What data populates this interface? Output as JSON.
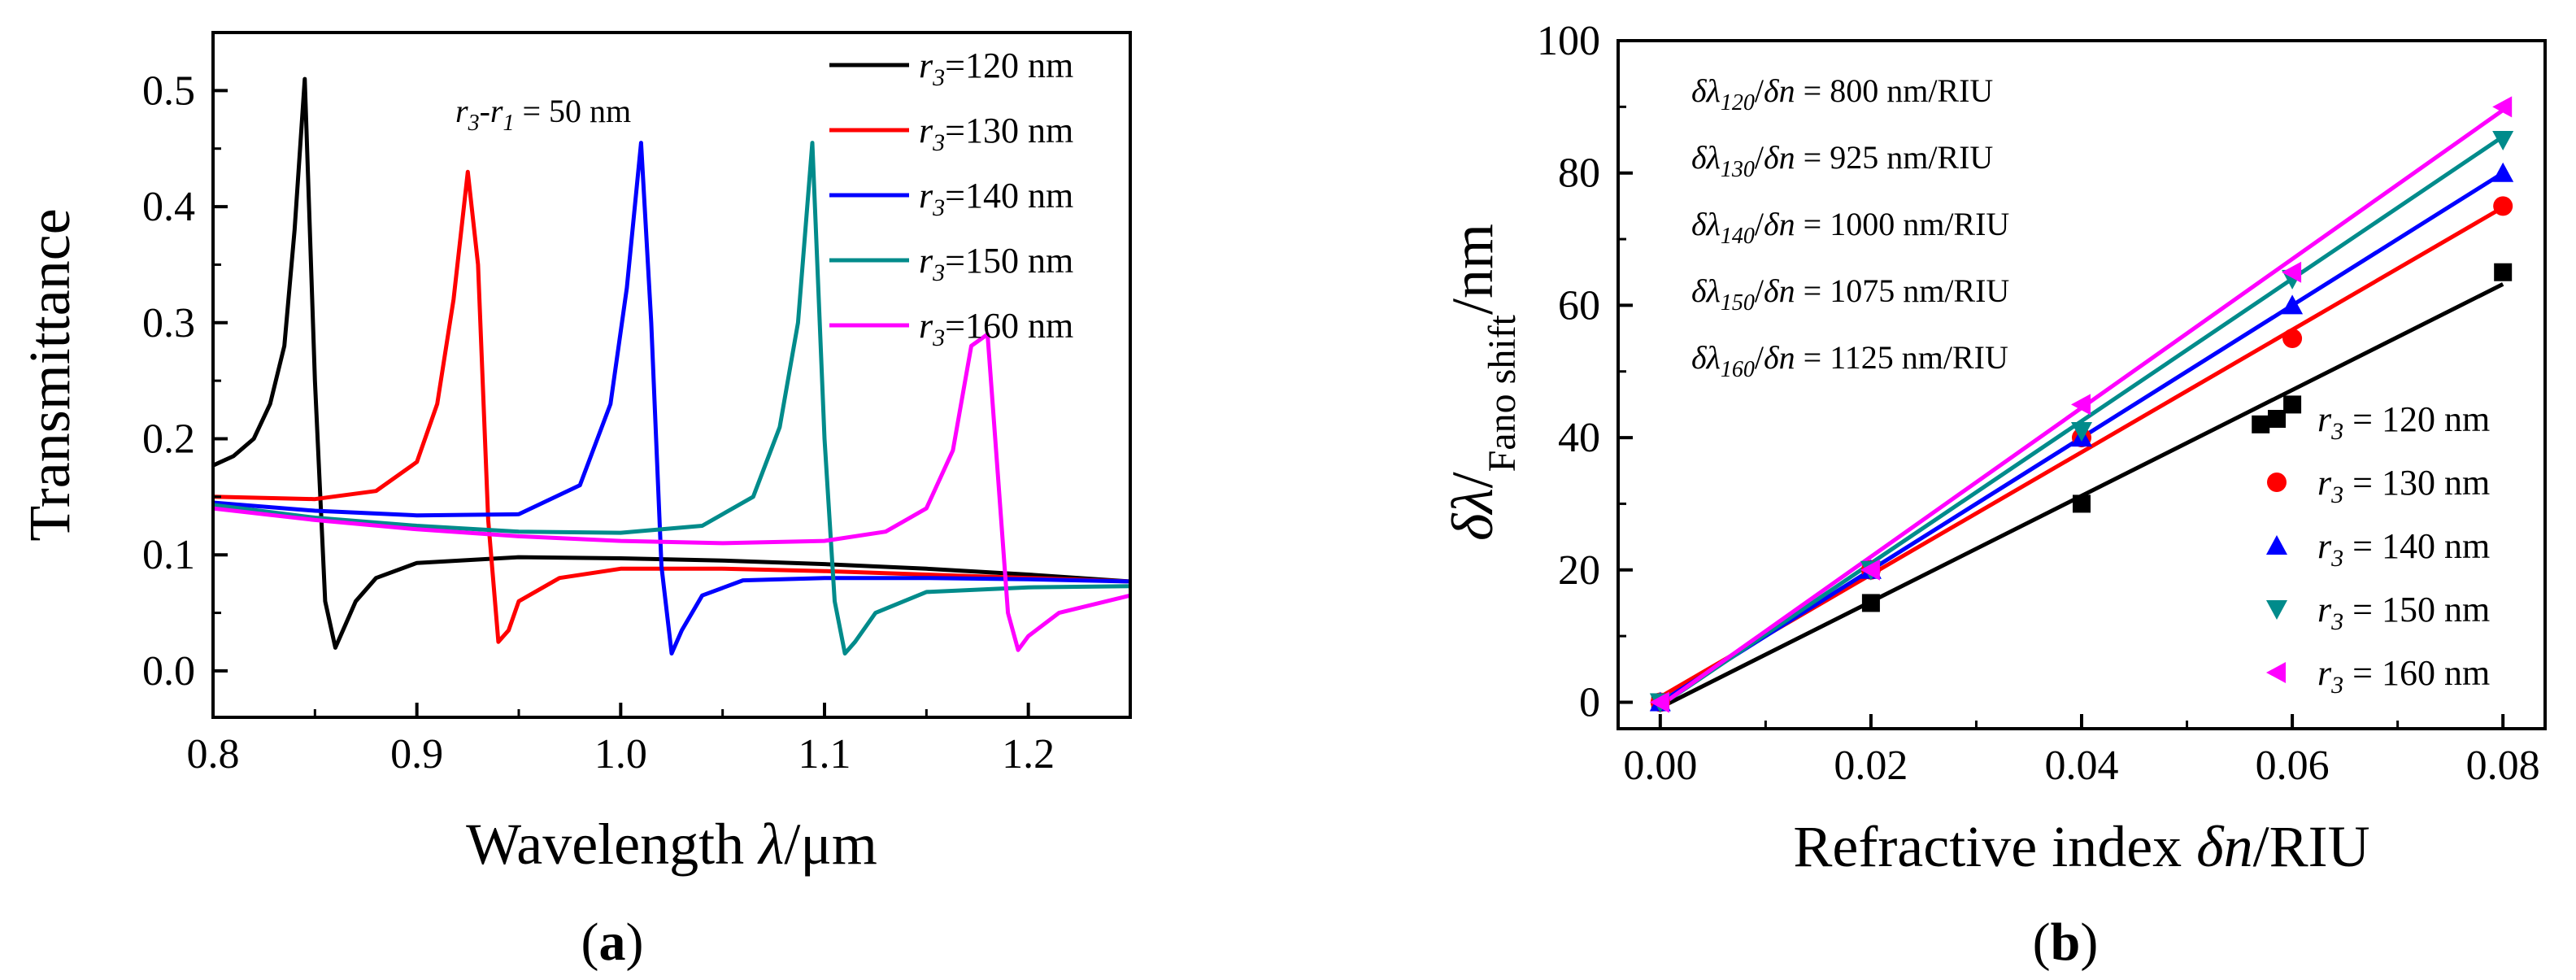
{
  "chart_data": [
    {
      "panel": "a",
      "panel_label": "(a)",
      "type": "line",
      "title": "",
      "xlabel": "Wavelength λ/μm",
      "ylabel": "Transmittance",
      "xlim": [
        0.8,
        1.25
      ],
      "ylim": [
        -0.04,
        0.55
      ],
      "xticks": [
        "0.8",
        "0.9",
        "1.0",
        "1.1",
        "1.2"
      ],
      "yticks": [
        "0.0",
        "0.1",
        "0.2",
        "0.3",
        "0.4",
        "0.5"
      ],
      "annotation": "r3-r1 = 50 nm",
      "legend_position": "top-right",
      "series": [
        {
          "name": "r3=120 nm",
          "color": "#000000",
          "x": [
            0.8,
            0.81,
            0.82,
            0.828,
            0.835,
            0.84,
            0.845,
            0.85,
            0.855,
            0.86,
            0.87,
            0.88,
            0.9,
            0.95,
            1.0,
            1.05,
            1.1,
            1.15,
            1.2,
            1.25
          ],
          "y": [
            0.177,
            0.185,
            0.2,
            0.23,
            0.28,
            0.38,
            0.51,
            0.25,
            0.06,
            0.02,
            0.06,
            0.08,
            0.093,
            0.098,
            0.097,
            0.095,
            0.092,
            0.088,
            0.083,
            0.077
          ]
        },
        {
          "name": "r3=130 nm",
          "color": "#ff0000",
          "x": [
            0.8,
            0.85,
            0.88,
            0.9,
            0.91,
            0.918,
            0.925,
            0.93,
            0.935,
            0.94,
            0.945,
            0.95,
            0.97,
            1.0,
            1.05,
            1.1,
            1.15,
            1.2,
            1.25
          ],
          "y": [
            0.15,
            0.148,
            0.155,
            0.18,
            0.23,
            0.32,
            0.43,
            0.35,
            0.13,
            0.025,
            0.035,
            0.06,
            0.08,
            0.088,
            0.088,
            0.086,
            0.083,
            0.08,
            0.077
          ]
        },
        {
          "name": "r3=140 nm",
          "color": "#0000ff",
          "x": [
            0.8,
            0.85,
            0.9,
            0.95,
            0.98,
            0.995,
            1.003,
            1.01,
            1.015,
            1.02,
            1.025,
            1.03,
            1.04,
            1.06,
            1.1,
            1.15,
            1.2,
            1.25
          ],
          "y": [
            0.145,
            0.138,
            0.134,
            0.135,
            0.16,
            0.23,
            0.33,
            0.455,
            0.3,
            0.09,
            0.015,
            0.035,
            0.065,
            0.078,
            0.08,
            0.08,
            0.079,
            0.077
          ]
        },
        {
          "name": "r3=150 nm",
          "color": "#008b8b",
          "x": [
            0.8,
            0.85,
            0.9,
            0.95,
            1.0,
            1.04,
            1.065,
            1.078,
            1.087,
            1.094,
            1.1,
            1.105,
            1.11,
            1.115,
            1.125,
            1.15,
            1.2,
            1.25
          ],
          "y": [
            0.143,
            0.132,
            0.125,
            0.12,
            0.119,
            0.125,
            0.15,
            0.21,
            0.3,
            0.455,
            0.2,
            0.06,
            0.015,
            0.025,
            0.05,
            0.068,
            0.072,
            0.073
          ]
        },
        {
          "name": "r3=160 nm",
          "color": "#ff00ff",
          "x": [
            0.8,
            0.85,
            0.9,
            0.95,
            1.0,
            1.05,
            1.1,
            1.13,
            1.15,
            1.163,
            1.172,
            1.18,
            1.185,
            1.19,
            1.195,
            1.2,
            1.215,
            1.25
          ],
          "y": [
            0.14,
            0.13,
            0.122,
            0.116,
            0.112,
            0.11,
            0.112,
            0.12,
            0.14,
            0.19,
            0.28,
            0.29,
            0.17,
            0.05,
            0.018,
            0.03,
            0.05,
            0.065
          ]
        }
      ]
    },
    {
      "panel": "b",
      "panel_label": "(b)",
      "type": "scatter",
      "title": "",
      "xlabel": "Refractive index δn/RIU",
      "ylabel": "δλ/Fano shift/nm",
      "xlim": [
        -0.004,
        0.084
      ],
      "ylim": [
        -4,
        100
      ],
      "xticks": [
        "0.00",
        "0.02",
        "0.04",
        "0.06",
        "0.08"
      ],
      "yticks": [
        "0",
        "20",
        "40",
        "60",
        "80",
        "100"
      ],
      "legend_position": "bottom-right",
      "annotations": [
        "δλ120/δn = 800 nm/RIU",
        "δλ130/δn = 925 nm/RIU",
        "δλ140/δn = 1000 nm/RIU",
        "δλ150/δn = 1075 nm/RIU",
        "δλ160/δn = 1125 nm/RIU"
      ],
      "series": [
        {
          "name": "r3 = 120 nm",
          "marker": "square",
          "color": "#000000",
          "x": [
            0,
            0.02,
            0.04,
            0.057,
            0.06,
            0.08
          ],
          "y": [
            0,
            15,
            30,
            42,
            45,
            65
          ],
          "fit": [
            -0.8,
            800
          ]
        },
        {
          "name": "r3 = 130 nm",
          "marker": "circle",
          "color": "#ff0000",
          "x": [
            0,
            0.02,
            0.04,
            0.06,
            0.08
          ],
          "y": [
            0,
            20,
            40,
            55,
            75
          ],
          "fit": [
            0.8,
            925
          ]
        },
        {
          "name": "r3 = 140 nm",
          "marker": "triangle-up",
          "color": "#0000ff",
          "x": [
            0,
            0.02,
            0.04,
            0.06,
            0.08
          ],
          "y": [
            0,
            20,
            40,
            60,
            80
          ],
          "fit": [
            0.0,
            1000
          ]
        },
        {
          "name": "r3 = 150 nm",
          "marker": "triangle-down",
          "color": "#008b8b",
          "x": [
            0,
            0.02,
            0.04,
            0.06,
            0.08
          ],
          "y": [
            0,
            20,
            41,
            64,
            85
          ],
          "fit": [
            -0.5,
            1075
          ]
        },
        {
          "name": "r3 = 160 nm",
          "marker": "triangle-left",
          "color": "#ff00ff",
          "x": [
            0,
            0.02,
            0.04,
            0.06,
            0.08
          ],
          "y": [
            0,
            20,
            45,
            65,
            90
          ],
          "fit": [
            -0.5,
            1125
          ]
        }
      ]
    }
  ]
}
